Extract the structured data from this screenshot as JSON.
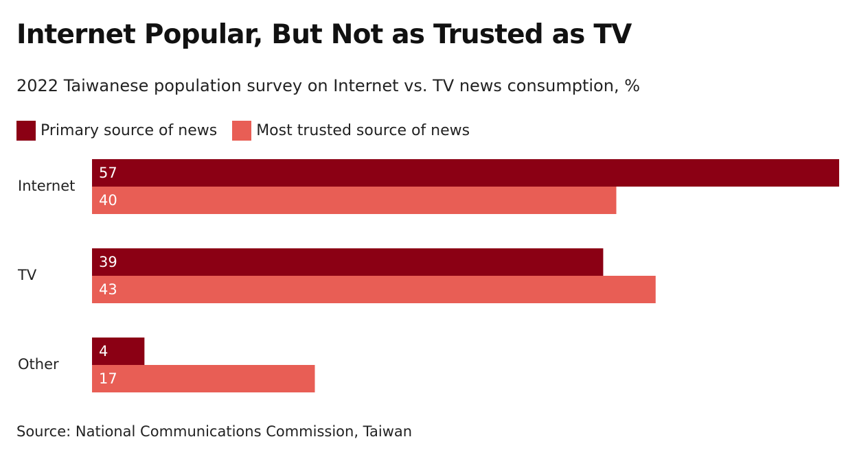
{
  "title": "Internet Popular, But Not as Trusted as TV",
  "subtitle": "2022 Taiwanese population survey on Internet vs. TV news consumption, %",
  "source": "Source: National Communications Commission, Taiwan",
  "colors": {
    "primary": "#8b0014",
    "trusted": "#e85e55"
  },
  "chart_data": {
    "type": "bar",
    "orientation": "horizontal",
    "categories": [
      "Internet",
      "TV",
      "Other"
    ],
    "series": [
      {
        "name": "Primary source of news",
        "values": [
          57,
          39,
          4
        ],
        "color": "#8b0014"
      },
      {
        "name": "Most trusted source of news",
        "values": [
          40,
          43,
          17
        ],
        "color": "#e85e55"
      }
    ],
    "xlim": [
      0,
      57
    ],
    "grid": false,
    "legend_position": "top-left",
    "data_labels": true
  }
}
